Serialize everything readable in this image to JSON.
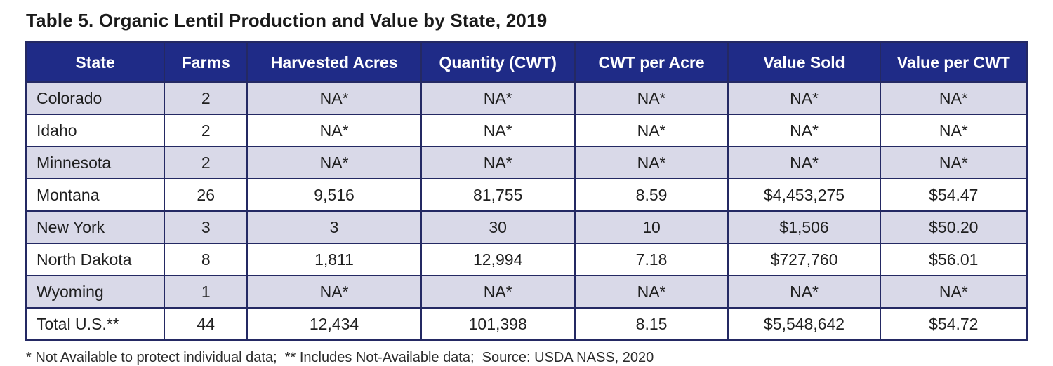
{
  "title": "Table 5. Organic Lentil Production and Value by State, 2019",
  "footnote": "* Not Available to protect individual data;  ** Includes Not-Available data;  Source: USDA NASS, 2020",
  "colors": {
    "header_bg": "#1f2b87",
    "header_text": "#ffffff",
    "alt_row_bg": "#d9d9e8",
    "border": "#242963"
  },
  "table": {
    "columns": [
      "State",
      "Farms",
      "Harvested Acres",
      "Quantity (CWT)",
      "CWT per Acre",
      "Value Sold",
      "Value per CWT"
    ],
    "rows": [
      [
        "Colorado",
        "2",
        "NA*",
        "NA*",
        "NA*",
        "NA*",
        "NA*"
      ],
      [
        "Idaho",
        "2",
        "NA*",
        "NA*",
        "NA*",
        "NA*",
        "NA*"
      ],
      [
        "Minnesota",
        "2",
        "NA*",
        "NA*",
        "NA*",
        "NA*",
        "NA*"
      ],
      [
        "Montana",
        "26",
        "9,516",
        "81,755",
        "8.59",
        "$4,453,275",
        "$54.47"
      ],
      [
        "New York",
        "3",
        "3",
        "30",
        "10",
        "$1,506",
        "$50.20"
      ],
      [
        "North Dakota",
        "8",
        "1,811",
        "12,994",
        "7.18",
        "$727,760",
        "$56.01"
      ],
      [
        "Wyoming",
        "1",
        "NA*",
        "NA*",
        "NA*",
        "NA*",
        "NA*"
      ],
      [
        "Total U.S.**",
        "44",
        "12,434",
        "101,398",
        "8.15",
        "$5,548,642",
        "$54.72"
      ]
    ]
  },
  "chart_data": {
    "type": "table",
    "title": "Table 5. Organic Lentil Production and Value by State, 2019",
    "columns": [
      "State",
      "Farms",
      "Harvested Acres",
      "Quantity (CWT)",
      "CWT per Acre",
      "Value Sold",
      "Value per CWT"
    ],
    "rows": [
      {
        "state": "Colorado",
        "farms": 2,
        "harvested_acres": null,
        "quantity_cwt": null,
        "cwt_per_acre": null,
        "value_sold": null,
        "value_per_cwt": null
      },
      {
        "state": "Idaho",
        "farms": 2,
        "harvested_acres": null,
        "quantity_cwt": null,
        "cwt_per_acre": null,
        "value_sold": null,
        "value_per_cwt": null
      },
      {
        "state": "Minnesota",
        "farms": 2,
        "harvested_acres": null,
        "quantity_cwt": null,
        "cwt_per_acre": null,
        "value_sold": null,
        "value_per_cwt": null
      },
      {
        "state": "Montana",
        "farms": 26,
        "harvested_acres": 9516,
        "quantity_cwt": 81755,
        "cwt_per_acre": 8.59,
        "value_sold": 4453275,
        "value_per_cwt": 54.47
      },
      {
        "state": "New York",
        "farms": 3,
        "harvested_acres": 3,
        "quantity_cwt": 30,
        "cwt_per_acre": 10,
        "value_sold": 1506,
        "value_per_cwt": 50.2
      },
      {
        "state": "North Dakota",
        "farms": 8,
        "harvested_acres": 1811,
        "quantity_cwt": 12994,
        "cwt_per_acre": 7.18,
        "value_sold": 727760,
        "value_per_cwt": 56.01
      },
      {
        "state": "Wyoming",
        "farms": 1,
        "harvested_acres": null,
        "quantity_cwt": null,
        "cwt_per_acre": null,
        "value_sold": null,
        "value_per_cwt": null
      },
      {
        "state": "Total U.S.**",
        "farms": 44,
        "harvested_acres": 12434,
        "quantity_cwt": 101398,
        "cwt_per_acre": 8.15,
        "value_sold": 5548642,
        "value_per_cwt": 54.72
      }
    ],
    "na_marker": "NA*",
    "footnote": "* Not Available to protect individual data;  ** Includes Not-Available data;  Source: USDA NASS, 2020"
  }
}
